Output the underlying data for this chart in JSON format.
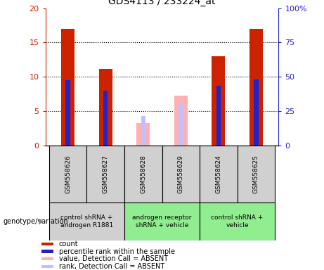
{
  "title": "GDS4113 / 233224_at",
  "samples": [
    "GSM558626",
    "GSM558627",
    "GSM558628",
    "GSM558629",
    "GSM558624",
    "GSM558625"
  ],
  "count_values": [
    17,
    11.2,
    null,
    null,
    13,
    17
  ],
  "percentile_values": [
    9.5,
    8.0,
    null,
    null,
    8.7,
    9.6
  ],
  "absent_value_values": [
    null,
    null,
    3.3,
    7.3,
    null,
    null
  ],
  "absent_rank_values": [
    null,
    null,
    4.3,
    6.3,
    null,
    null
  ],
  "ylim_left": [
    0,
    20
  ],
  "ylim_right": [
    0,
    100
  ],
  "yticks_left": [
    0,
    5,
    10,
    15,
    20
  ],
  "yticks_right": [
    0,
    25,
    50,
    75,
    100
  ],
  "ytick_labels_left": [
    "0",
    "5",
    "10",
    "15",
    "20"
  ],
  "ytick_labels_right": [
    "0",
    "25",
    "50",
    "75",
    "100%"
  ],
  "groups": [
    {
      "label": "control shRNA +\nandrogen R1881",
      "samples": [
        0,
        1
      ],
      "color": "#d0d0d0"
    },
    {
      "label": "androgen receptor\nshRNA + vehicle",
      "samples": [
        2,
        3
      ],
      "color": "#90ee90"
    },
    {
      "label": "control shRNA +\nvehicle",
      "samples": [
        4,
        5
      ],
      "color": "#90ee90"
    }
  ],
  "bar_width": 0.35,
  "thin_bar_width": 0.12,
  "count_color": "#cc2200",
  "percentile_color": "#2222cc",
  "absent_value_color": "#ffb0b0",
  "absent_rank_color": "#c0c0ff",
  "legend_items": [
    {
      "color": "#cc2200",
      "label": "count"
    },
    {
      "color": "#2222cc",
      "label": "percentile rank within the sample"
    },
    {
      "color": "#ffb0b0",
      "label": "value, Detection Call = ABSENT"
    },
    {
      "color": "#c0c0ff",
      "label": "rank, Detection Call = ABSENT"
    }
  ],
  "dotted_line_color": "black",
  "group_label_x": "genotype/variation",
  "sample_box_color": "#d0d0d0",
  "plot_bg": "white",
  "fig_bg": "white"
}
